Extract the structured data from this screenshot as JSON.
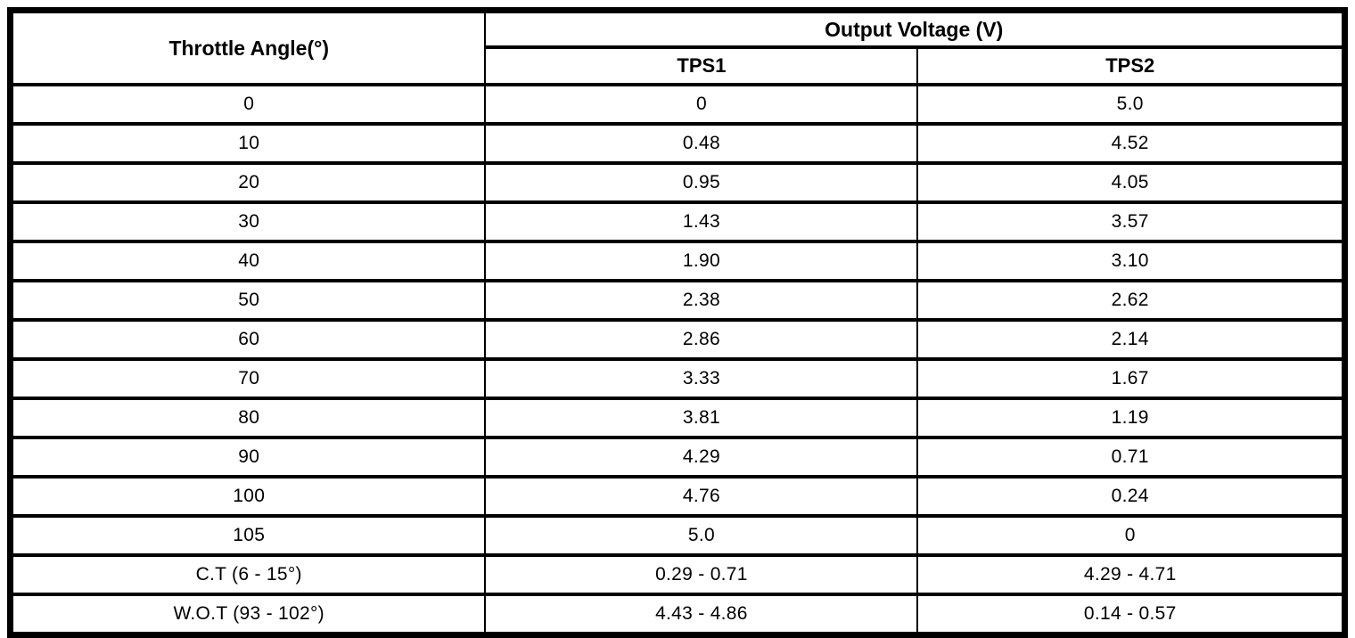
{
  "colors": {
    "border": "#000000",
    "background": "#ffffff",
    "text": "#000000"
  },
  "table": {
    "header": {
      "angle_label": "Throttle Angle(°)",
      "output_group_label": "Output Voltage (V)",
      "tps1_label": "TPS1",
      "tps2_label": "TPS2"
    },
    "rows": [
      {
        "angle": "0",
        "tps1": "0",
        "tps2": "5.0"
      },
      {
        "angle": "10",
        "tps1": "0.48",
        "tps2": "4.52"
      },
      {
        "angle": "20",
        "tps1": "0.95",
        "tps2": "4.05"
      },
      {
        "angle": "30",
        "tps1": "1.43",
        "tps2": "3.57"
      },
      {
        "angle": "40",
        "tps1": "1.90",
        "tps2": "3.10"
      },
      {
        "angle": "50",
        "tps1": "2.38",
        "tps2": "2.62"
      },
      {
        "angle": "60",
        "tps1": "2.86",
        "tps2": "2.14"
      },
      {
        "angle": "70",
        "tps1": "3.33",
        "tps2": "1.67"
      },
      {
        "angle": "80",
        "tps1": "3.81",
        "tps2": "1.19"
      },
      {
        "angle": "90",
        "tps1": "4.29",
        "tps2": "0.71"
      },
      {
        "angle": "100",
        "tps1": "4.76",
        "tps2": "0.24"
      },
      {
        "angle": "105",
        "tps1": "5.0",
        "tps2": "0"
      },
      {
        "angle": "C.T (6 - 15°)",
        "tps1": "0.29 - 0.71",
        "tps2": "4.29 - 4.71"
      },
      {
        "angle": "W.O.T (93 - 102°)",
        "tps1": "4.43 - 4.86",
        "tps2": "0.14 - 0.57"
      }
    ]
  }
}
